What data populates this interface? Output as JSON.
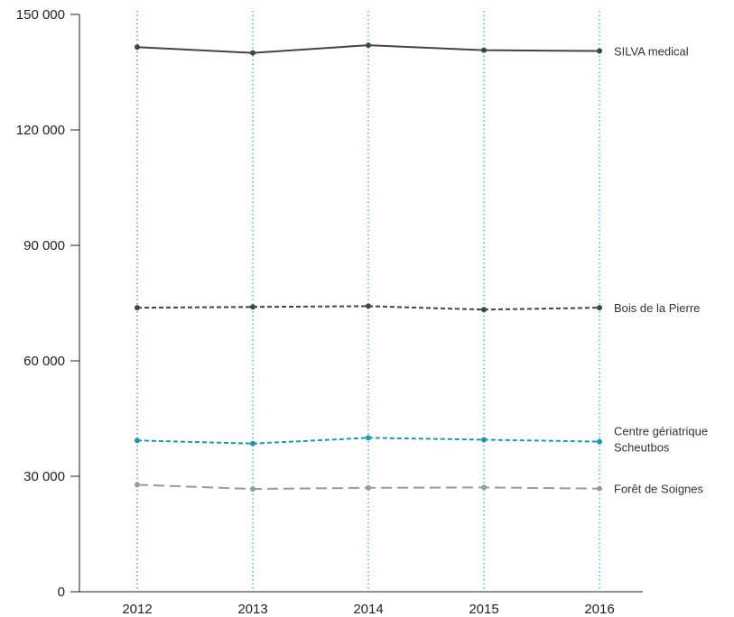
{
  "chart_data": {
    "type": "line",
    "x": [
      "2012",
      "2013",
      "2014",
      "2015",
      "2016"
    ],
    "ylim": [
      0,
      150000
    ],
    "yticks": [
      "0",
      "30 000",
      "60 000",
      "90 000",
      "120 000",
      "150 000"
    ],
    "grid": "vertical dotted lines at each year",
    "legend": "series labels placed at right end of each line",
    "series": [
      {
        "name": "SILVA medical",
        "label_lines": [
          "SILVA medical"
        ],
        "values": [
          141500,
          140000,
          142000,
          140700,
          140500
        ],
        "color": "#444444",
        "dash": "solid"
      },
      {
        "name": "Bois de la Pierre",
        "label_lines": [
          "Bois de la Pierre"
        ],
        "values": [
          73800,
          74000,
          74200,
          73300,
          73800
        ],
        "color": "#444444",
        "dash": "dashed"
      },
      {
        "name": "Centre gériatrique Scheutbos",
        "label_lines": [
          "Centre gériatrique",
          "Scheutbos"
        ],
        "values": [
          39300,
          38500,
          40000,
          39500,
          39000
        ],
        "color": "#1a9aa8",
        "dash": "dashed"
      },
      {
        "name": "Forêt de Soignes",
        "label_lines": [
          "Forêt de Soignes"
        ],
        "values": [
          27800,
          26700,
          27000,
          27100,
          26800
        ],
        "color": "#9a9a9a",
        "dash": "longdash"
      }
    ]
  }
}
